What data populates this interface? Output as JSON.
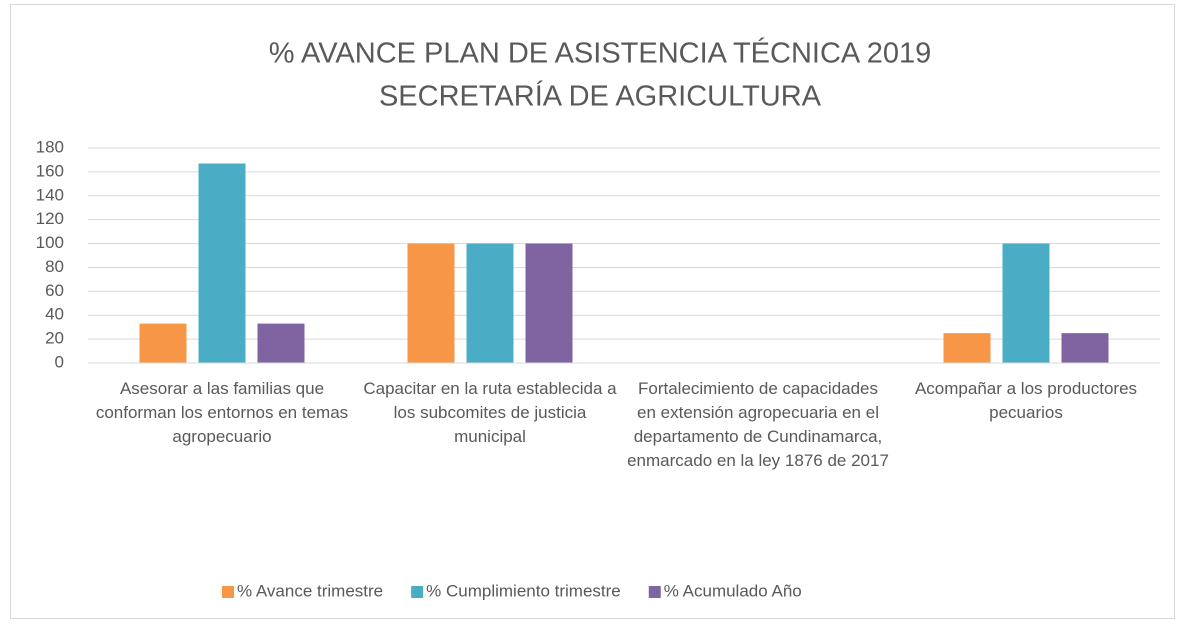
{
  "chart_data": {
    "type": "bar",
    "title": [
      "% AVANCE PLAN DE ASISTENCIA TÉCNICA 2019",
      "SECRETARÍA DE AGRICULTURA"
    ],
    "categories": [
      "Asesorar a las familias  que conforman los entornos en temas agropecuario",
      "Capacitar en la ruta establecida a los subcomites de justicia municipal",
      "Fortalecimiento de capacidades en extensión agropecuaria en el departamento de Cundinamarca, enmarcado en la ley 1876 de 2017",
      "Acompañar a los productores pecuarios"
    ],
    "series": [
      {
        "name": "% Avance trimestre",
        "color": "#f79646",
        "values": [
          33,
          100,
          0,
          25
        ]
      },
      {
        "name": "% Cumplimiento trimestre",
        "color": "#4bacc6",
        "values": [
          167,
          100,
          0,
          100
        ]
      },
      {
        "name": "% Acumulado Año",
        "color": "#8064a2",
        "values": [
          33,
          100,
          0,
          25
        ]
      }
    ],
    "ylim": [
      0,
      180
    ],
    "yticks": [
      0,
      20,
      40,
      60,
      80,
      100,
      120,
      140,
      160,
      180
    ],
    "grid": true,
    "legend": "bottom"
  }
}
